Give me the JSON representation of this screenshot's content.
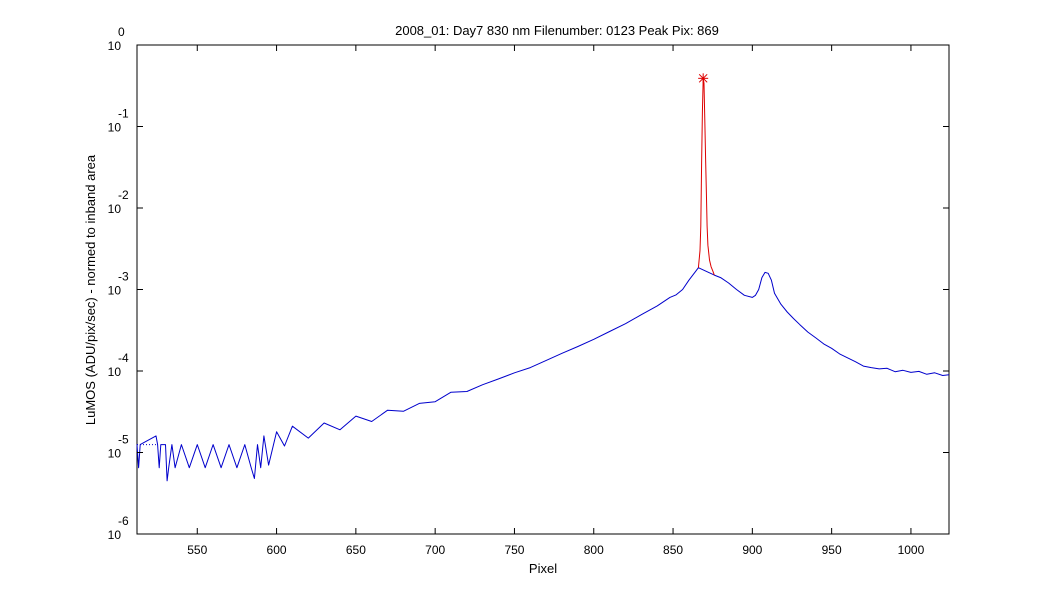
{
  "chart_data": {
    "type": "line",
    "title": "2008_01: Day7  830 nm  Filenumber: 0123 Peak Pix: 869",
    "xlabel": "Pixel",
    "ylabel": "LuMOS (ADU/pix/sec) - normed to inband area",
    "xlim": [
      512,
      1024
    ],
    "ylim": [
      1e-06,
      1
    ],
    "yscale": "log",
    "grid": false,
    "xticks": [
      550,
      600,
      650,
      700,
      750,
      800,
      850,
      900,
      950,
      1000
    ],
    "yticks": [
      {
        "value": 1e-06,
        "base": "10",
        "exp": "-6"
      },
      {
        "value": 1e-05,
        "base": "10",
        "exp": "-5"
      },
      {
        "value": 0.0001,
        "base": "10",
        "exp": "-4"
      },
      {
        "value": 0.001,
        "base": "10",
        "exp": "-3"
      },
      {
        "value": 0.01,
        "base": "10",
        "exp": "-2"
      },
      {
        "value": 0.1,
        "base": "10",
        "exp": "-1"
      },
      {
        "value": 1,
        "base": "10",
        "exp": "0"
      }
    ],
    "series": [
      {
        "style": "dotted",
        "color": "#0000cc",
        "x": [
          512,
          514,
          516,
          518,
          520,
          522,
          524
        ],
        "y": [
          1.25e-05,
          1.25e-05,
          1.25e-05,
          1.25e-05,
          1.25e-05,
          1.25e-05,
          1.25e-05
        ]
      },
      {
        "style": "solid",
        "color": "#0000cc",
        "x": [
          512,
          513,
          514,
          524,
          525,
          526,
          527,
          530,
          531,
          532,
          534,
          536,
          540,
          545,
          550,
          555,
          560,
          565,
          570,
          575,
          580,
          584,
          586,
          588,
          590,
          592,
          595,
          600,
          605,
          610,
          620,
          630,
          640,
          650,
          660,
          670,
          680,
          690,
          700,
          710,
          720,
          730,
          740,
          750,
          760,
          770,
          780,
          790,
          800,
          810,
          820,
          830,
          840,
          848,
          852,
          856,
          860,
          864,
          866,
          876,
          880,
          885,
          890,
          895,
          900,
          902,
          904,
          906,
          908,
          910,
          912,
          914,
          918,
          922,
          926,
          930,
          935,
          940,
          945,
          950,
          955,
          960,
          965,
          970,
          975,
          980,
          985,
          990,
          995,
          1000,
          1005,
          1010,
          1015,
          1020,
          1024
        ],
        "y": [
          1.25e-05,
          6.5e-06,
          1.25e-05,
          1.6e-05,
          1.25e-05,
          6.5e-06,
          1.25e-05,
          1.25e-05,
          4.5e-06,
          6.5e-06,
          1.25e-05,
          6.5e-06,
          1.25e-05,
          6.5e-06,
          1.25e-05,
          6.5e-06,
          1.25e-05,
          6.5e-06,
          1.25e-05,
          6.5e-06,
          1.25e-05,
          6.5e-06,
          4.8e-06,
          1.25e-05,
          6.5e-06,
          1.6e-05,
          7e-06,
          1.8e-05,
          1.2e-05,
          2.1e-05,
          1.5e-05,
          2.3e-05,
          1.9e-05,
          2.8e-05,
          2.4e-05,
          3.3e-05,
          3.2e-05,
          4e-05,
          4.2e-05,
          5.5e-05,
          5.6e-05,
          6.8e-05,
          8e-05,
          9.5e-05,
          0.00011,
          0.000135,
          0.000165,
          0.0002,
          0.000245,
          0.000305,
          0.00038,
          0.00049,
          0.00063,
          0.0008,
          0.00086,
          0.001,
          0.0013,
          0.00165,
          0.00185,
          0.0015,
          0.0014,
          0.0012,
          0.001,
          0.00085,
          0.0008,
          0.00085,
          0.001,
          0.0014,
          0.00162,
          0.00158,
          0.0013,
          0.0009,
          0.00066,
          0.00053,
          0.00044,
          0.00037,
          0.0003,
          0.000255,
          0.000215,
          0.00019,
          0.000162,
          0.000145,
          0.00013,
          0.000115,
          0.00011,
          0.000106,
          0.000108,
          9.8e-05,
          0.000102,
          9.6e-05,
          9.9e-05,
          9.1e-05,
          9.5e-05,
          8.8e-05,
          9e-05
        ]
      },
      {
        "style": "solid",
        "color": "#dd0000",
        "x": [
          866,
          867,
          867.5,
          868,
          868.5,
          869,
          869.5,
          870,
          870.5,
          871,
          871.5,
          872,
          873,
          874,
          875,
          876
        ],
        "y": [
          0.00185,
          0.003,
          0.006,
          0.035,
          0.15,
          0.39,
          0.34,
          0.12,
          0.04,
          0.015,
          0.006,
          0.0035,
          0.0023,
          0.0019,
          0.0017,
          0.0015
        ]
      }
    ],
    "peak_marker": {
      "x": 869,
      "y": 0.39,
      "color": "#dd0000",
      "symbol": "*"
    }
  }
}
